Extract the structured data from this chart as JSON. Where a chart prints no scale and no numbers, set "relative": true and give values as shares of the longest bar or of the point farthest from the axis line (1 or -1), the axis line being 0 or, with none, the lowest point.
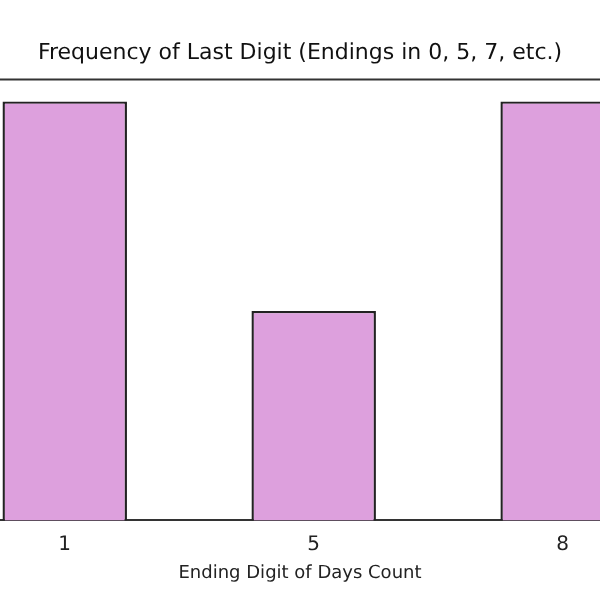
{
  "chart_data": {
    "type": "bar",
    "title": "Frequency of Last Digit (Endings in 0, 5, 7, etc.)",
    "xlabel": "Ending Digit of Days Count",
    "categories": [
      "1",
      "5",
      "8"
    ],
    "values": [
      1,
      0.5,
      1
    ],
    "color": "#dda0dd",
    "relative": true,
    "grid": false,
    "legend": false
  }
}
